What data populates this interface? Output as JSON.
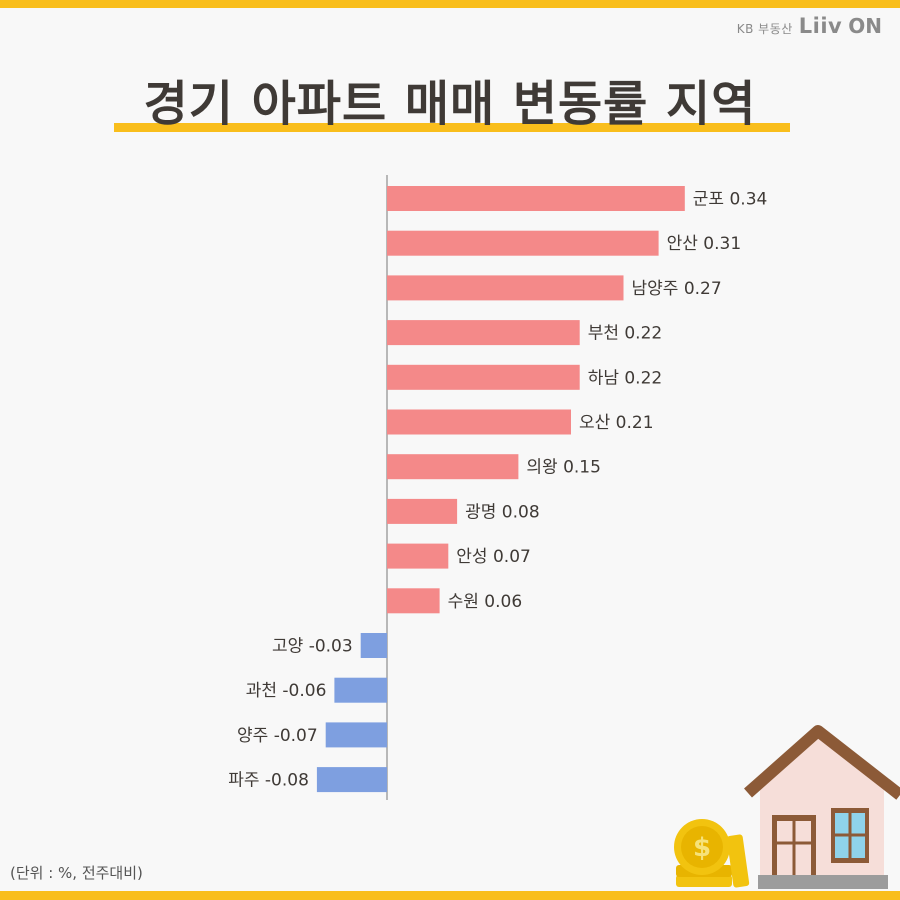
{
  "brand": {
    "kb": "KB 부동산",
    "liiv": "Liiv",
    "on": "ON"
  },
  "title": "경기 아파트 매매 변동률 지역",
  "unit_note": "(단위 : %, 전주대비)",
  "colors": {
    "accent": "#f9be1c",
    "positive": "#f48989",
    "negative": "#7e9fe0",
    "text": "#3f3a36",
    "axis": "#777777"
  },
  "chart_data": {
    "type": "bar",
    "orientation": "horizontal",
    "title": "경기 아파트 매매 변동률 지역",
    "unit": "%",
    "categories": [
      "군포",
      "안산",
      "남양주",
      "부천",
      "하남",
      "오산",
      "의왕",
      "광명",
      "안성",
      "수원",
      "고양",
      "과천",
      "양주",
      "파주"
    ],
    "values": [
      0.34,
      0.31,
      0.27,
      0.22,
      0.22,
      0.21,
      0.15,
      0.08,
      0.07,
      0.06,
      -0.03,
      -0.06,
      -0.07,
      -0.08
    ],
    "labels": [
      "군포 0.34",
      "안산 0.31",
      "남양주 0.27",
      "부천 0.22",
      "하남 0.22",
      "오산 0.21",
      "의왕 0.15",
      "광명 0.08",
      "안성 0.07",
      "수원 0.06",
      "고양 -0.03",
      "과천 -0.06",
      "양주 -0.07",
      "파주 -0.08"
    ],
    "xlim": [
      -0.1,
      0.34
    ],
    "grid": false
  }
}
